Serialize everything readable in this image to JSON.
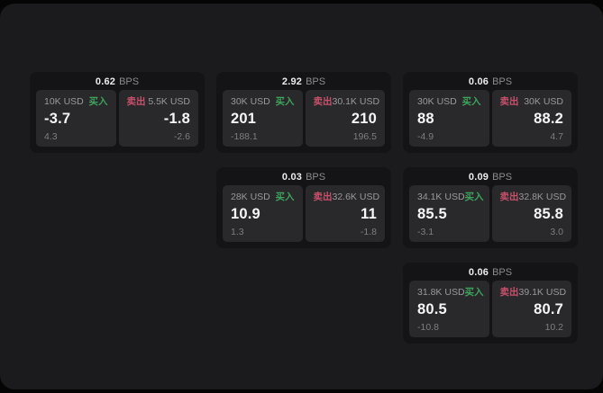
{
  "labels": {
    "bps_unit": "BPS",
    "buy": "买入",
    "sell": "卖出"
  },
  "colors": {
    "buy_green": "#3da35d",
    "sell_red": "#c9506b",
    "page_bg": "#1b1b1d",
    "card_bg": "#141416",
    "panel_bg": "#29292c"
  },
  "cards": [
    {
      "bps": "0.62",
      "col": 1,
      "row": 1,
      "buy": {
        "amount": "10K USD",
        "value": "-3.7",
        "sub": "4.3"
      },
      "sell": {
        "amount": "5.5K USD",
        "value": "-1.8",
        "sub": "-2.6"
      }
    },
    {
      "bps": "2.92",
      "col": 2,
      "row": 1,
      "buy": {
        "amount": "30K USD",
        "value": "201",
        "sub": "-188.1"
      },
      "sell": {
        "amount": "30.1K USD",
        "value": "210",
        "sub": "196.5"
      }
    },
    {
      "bps": "0.06",
      "col": 3,
      "row": 1,
      "buy": {
        "amount": "30K USD",
        "value": "88",
        "sub": "-4.9"
      },
      "sell": {
        "amount": "30K USD",
        "value": "88.2",
        "sub": "4.7"
      }
    },
    {
      "bps": "0.03",
      "col": 2,
      "row": 2,
      "buy": {
        "amount": "28K USD",
        "value": "10.9",
        "sub": "1.3"
      },
      "sell": {
        "amount": "32.6K USD",
        "value": "11",
        "sub": "-1.8"
      }
    },
    {
      "bps": "0.09",
      "col": 3,
      "row": 2,
      "buy": {
        "amount": "34.1K USD",
        "value": "85.5",
        "sub": "-3.1"
      },
      "sell": {
        "amount": "32.8K USD",
        "value": "85.8",
        "sub": "3.0"
      }
    },
    {
      "bps": "0.06",
      "col": 3,
      "row": 3,
      "buy": {
        "amount": "31.8K USD",
        "value": "80.5",
        "sub": "-10.8"
      },
      "sell": {
        "amount": "39.1K USD",
        "value": "80.7",
        "sub": "10.2"
      }
    }
  ]
}
